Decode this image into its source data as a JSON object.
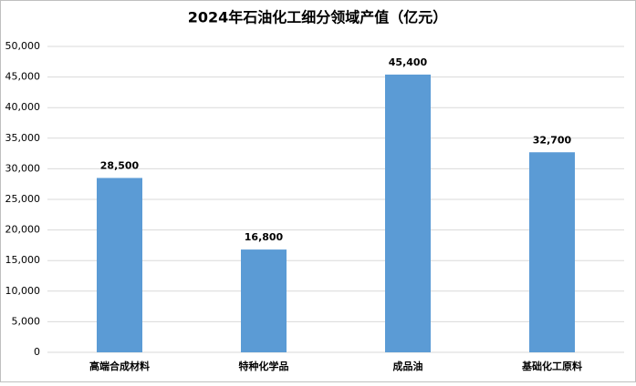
{
  "chart_data": {
    "type": "bar",
    "title": "2024年石油化工细分领域产值（亿元）",
    "categories": [
      "高端合成材料",
      "特种化学品",
      "成品油",
      "基础化工原料"
    ],
    "values": [
      28500,
      16800,
      45400,
      32700
    ],
    "value_labels": [
      "28,500",
      "16,800",
      "45,400",
      "32,700"
    ],
    "color": "#5b9bd5",
    "ylim": [
      0,
      50000
    ],
    "yticks": [
      0,
      {
        "value": 5000,
        "label": "5,000"
      },
      {
        "value": 10000,
        "label": "10,000"
      },
      {
        "value": 15000,
        "label": "15,000"
      },
      {
        "value": 20000,
        "label": "20,000"
      },
      {
        "value": 25000,
        "label": "25,000"
      },
      {
        "value": 30000,
        "label": "30,000"
      },
      {
        "value": 35000,
        "label": "35,000"
      },
      {
        "value": 40000,
        "label": "40,000"
      },
      {
        "value": 45000,
        "label": "45,000"
      },
      {
        "value": 50000,
        "label": "50,000"
      }
    ],
    "grid": true
  }
}
